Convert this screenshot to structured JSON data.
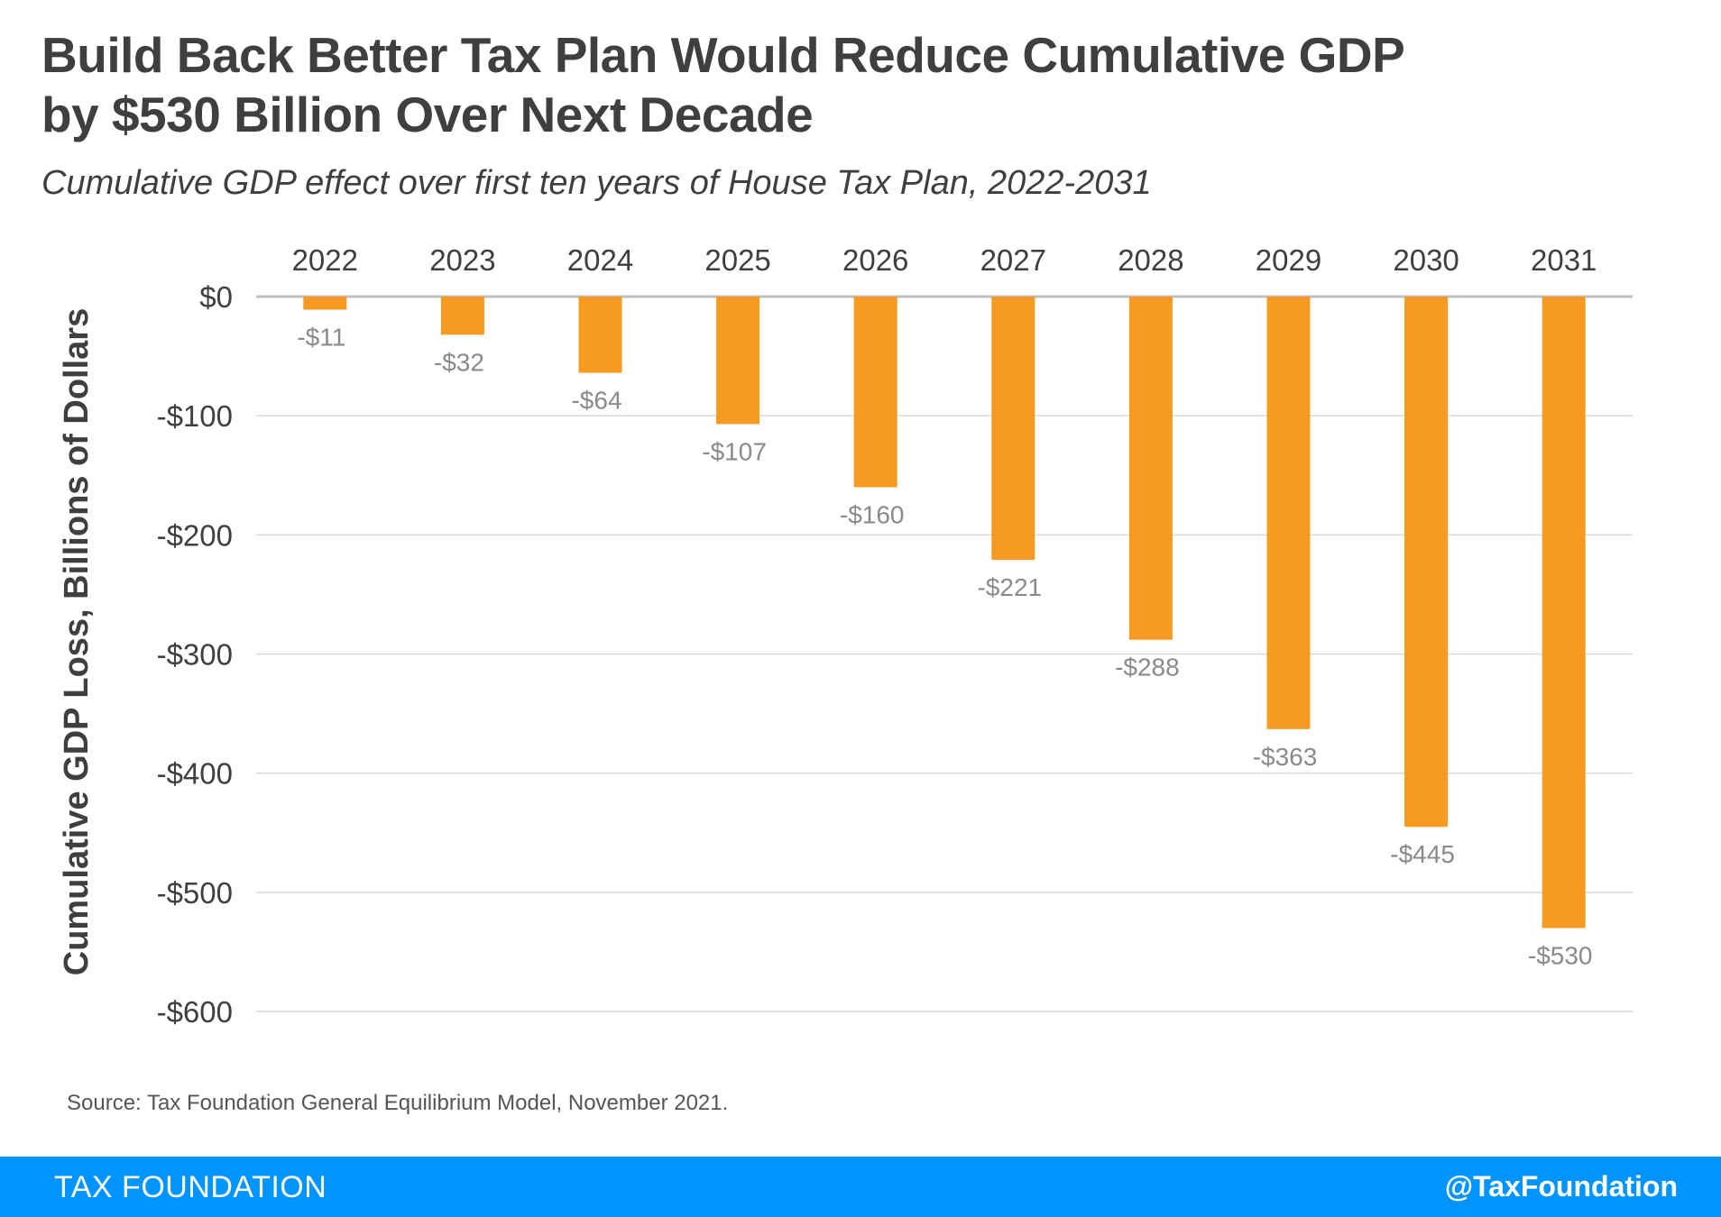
{
  "header": {
    "title_line1": "Build Back Better Tax Plan Would Reduce Cumulative GDP",
    "title_line2": "by $530 Billion Over Next Decade",
    "subtitle": "Cumulative GDP effect over first ten years of House Tax Plan, 2022-2031"
  },
  "source": "Source: Tax Foundation General Equilibrium Model, November 2021.",
  "footer": {
    "brand": "TAX FOUNDATION",
    "handle": "@TaxFoundation"
  },
  "colors": {
    "bar": "#f69a21",
    "footer": "#0094ff",
    "text": "#3f3f3f",
    "data_label": "#8a8a8a",
    "grid": "#d9d9d9"
  },
  "chart_data": {
    "type": "bar",
    "categories": [
      "2022",
      "2023",
      "2024",
      "2025",
      "2026",
      "2027",
      "2028",
      "2029",
      "2030",
      "2031"
    ],
    "values": [
      -11,
      -32,
      -64,
      -107,
      -160,
      -221,
      -288,
      -363,
      -445,
      -530
    ],
    "data_labels": [
      "-$11",
      "-$32",
      "-$64",
      "-$107",
      "-$160",
      "-$221",
      "-$288",
      "-$363",
      "-$445",
      "-$530"
    ],
    "ylabel": "Cumulative GDP Loss, Billions of Dollars",
    "ylim": [
      -600,
      0
    ],
    "yticks": [
      0,
      -100,
      -200,
      -300,
      -400,
      -500,
      -600
    ],
    "ytick_labels": [
      "$0",
      "-$100",
      "-$200",
      "-$300",
      "-$400",
      "-$500",
      "-$600"
    ],
    "xaxis_position": "top",
    "grid": true,
    "legend": "none"
  }
}
